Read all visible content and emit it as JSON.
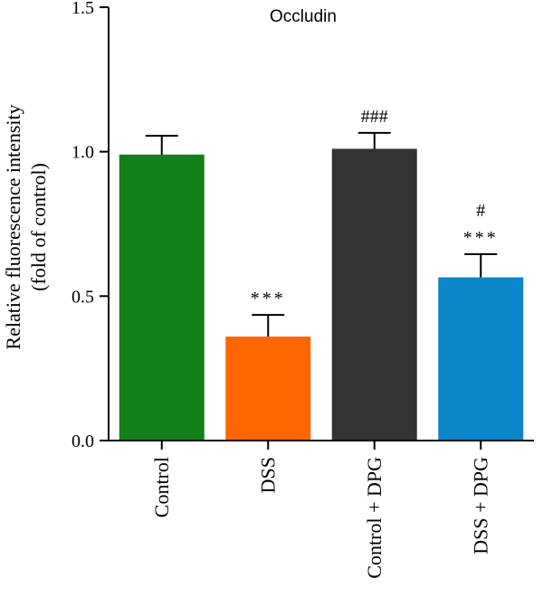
{
  "chart_data": {
    "type": "bar",
    "title": "Occludin",
    "ylabel_line1": "Relative fluorescence intensity",
    "ylabel_line2": "(fold of control)",
    "xlabel": "",
    "ylim": [
      0,
      1.5
    ],
    "yticks": [
      "0.0",
      "0.5",
      "1.0",
      "1.5"
    ],
    "ytick_values": [
      0,
      0.5,
      1.0,
      1.5
    ],
    "categories": [
      "Control",
      "DSS",
      "Control + DPG",
      "DSS + DPG"
    ],
    "values": [
      0.99,
      0.36,
      1.01,
      0.565
    ],
    "errors": [
      0.065,
      0.075,
      0.055,
      0.08
    ],
    "colors": [
      "#118018",
      "#ff6600",
      "#333333",
      "#0b86c8"
    ],
    "annotations": [
      [],
      [
        "***"
      ],
      [
        "###"
      ],
      [
        "***",
        "#"
      ]
    ],
    "grid": false,
    "legend": "none"
  }
}
